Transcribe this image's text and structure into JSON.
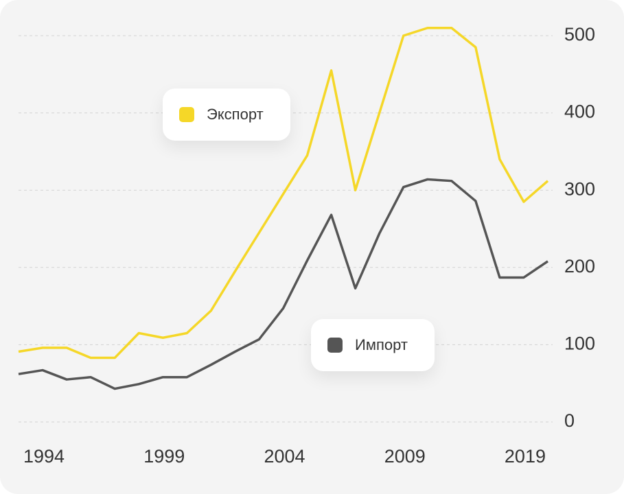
{
  "chart_data": {
    "type": "line",
    "categories": [
      null,
      "1994",
      null,
      null,
      null,
      null,
      "1999",
      null,
      null,
      null,
      null,
      "2004",
      null,
      null,
      null,
      null,
      "2009",
      null,
      null,
      null,
      null,
      "2019",
      null
    ],
    "series": [
      {
        "name": "Экспорт",
        "color": "#f5d728",
        "values": [
          91,
          96,
          96,
          83,
          83,
          115,
          109,
          115,
          144,
          195,
          245,
          295,
          345,
          455,
          300,
          400,
          500,
          510,
          510,
          485,
          340,
          285,
          312
        ]
      },
      {
        "name": "Импорт",
        "color": "#555555",
        "values": [
          62,
          67,
          55,
          58,
          43,
          49,
          58,
          58,
          74,
          91,
          107,
          147,
          209,
          268,
          173,
          244,
          304,
          314,
          312,
          286,
          187,
          187,
          208
        ]
      }
    ],
    "ylim": [
      0,
      500
    ],
    "yticks": [
      0,
      100,
      200,
      300,
      400,
      500
    ],
    "grid": true
  }
}
